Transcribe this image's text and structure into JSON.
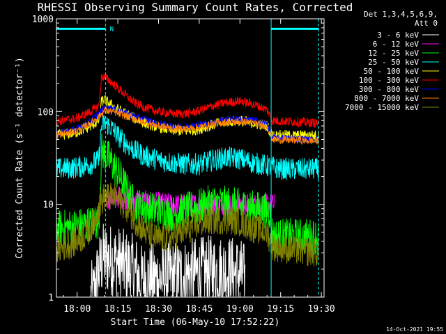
{
  "chart_data": {
    "type": "line",
    "title": "RHESSI Observing Summary Count Rates, Corrected",
    "xlabel": "Start Time (06-May-10 17:52:22)",
    "ylabel": "Corrected Count Rate (s⁻¹ detector⁻¹)",
    "yscale": "log",
    "ylim": [
      1,
      1000
    ],
    "xlim": [
      "17:52:22",
      "19:31:00"
    ],
    "x_ticks": [
      "18:00",
      "18:15",
      "18:30",
      "18:45",
      "19:00",
      "19:15",
      "19:30"
    ],
    "y_ticks": [
      "1",
      "10",
      "100",
      "1000"
    ],
    "legend_header": [
      "Det 1,3,4,5,6,9,",
      "Att 0"
    ],
    "legend_position": "right",
    "footer_stamp": "14-Oct-2021 19:55",
    "flag_label": "N",
    "flags": [
      {
        "name": "night",
        "start": "17:52:22",
        "end": "18:10:30",
        "level": 780
      },
      {
        "name": "night",
        "start": "19:11:30",
        "end": "19:29:00",
        "level": 780
      }
    ],
    "vertical_lines": [
      {
        "t": "17:52:22",
        "style": "solid"
      },
      {
        "t": "18:10:30",
        "style": "dashed"
      },
      {
        "t": "19:11:30",
        "style": "solid"
      },
      {
        "t": "19:29:00",
        "style": "dashed"
      }
    ],
    "series": [
      {
        "name": "3 - 6 keV",
        "color": "#ffffff",
        "noise": 0.4,
        "x": [
          "18:05",
          "18:06",
          "18:07",
          "18:08",
          "18:09",
          "18:10",
          "18:11",
          "18:13",
          "18:15",
          "18:17",
          "18:20",
          "18:22",
          "18:23",
          "18:45",
          "18:50",
          "18:55",
          "19:00",
          "19:02"
        ],
        "y": [
          1.0,
          1.0,
          1.5,
          1.9,
          2.4,
          2.7,
          2.6,
          2.5,
          2.4,
          2.2,
          2.0,
          1.8,
          1.5,
          1.8,
          1.9,
          1.9,
          1.8,
          1.5
        ]
      },
      {
        "name": "6 - 12 keV",
        "color": "#ff00ff",
        "noise": 0.12,
        "x": [
          "18:11",
          "18:13",
          "18:15",
          "18:18",
          "18:22",
          "18:27",
          "18:35",
          "18:45",
          "18:55",
          "19:05",
          "19:13"
        ],
        "y": [
          11,
          12,
          12,
          11.5,
          11,
          10.5,
          10,
          10,
          10,
          10,
          10
        ]
      },
      {
        "name": "12 - 25 keV",
        "color": "#00ff00",
        "noise": 0.2,
        "x": [
          "17:52:22",
          "18:00",
          "18:05",
          "18:08",
          "18:09",
          "18:10",
          "18:12",
          "18:15",
          "18:18",
          "18:21",
          "18:25",
          "18:30",
          "18:35",
          "18:40",
          "18:45",
          "18:50",
          "18:55",
          "19:00",
          "19:05",
          "19:11",
          "19:12",
          "19:20",
          "19:29"
        ],
        "y": [
          5.5,
          5.8,
          6.2,
          6.5,
          38,
          35,
          30,
          22,
          15,
          10,
          9,
          8.5,
          8.0,
          8.5,
          9.5,
          10.5,
          10,
          9.5,
          9,
          8.5,
          4.5,
          4.5,
          4.5
        ]
      },
      {
        "name": "25 - 50 keV",
        "color": "#00ffff",
        "noise": 0.12,
        "x": [
          "17:52:22",
          "18:00",
          "18:05",
          "18:08",
          "18:09",
          "18:10",
          "18:12",
          "18:15",
          "18:18",
          "18:21",
          "18:25",
          "18:30",
          "18:35",
          "18:40",
          "18:45",
          "18:50",
          "18:55",
          "19:00",
          "19:05",
          "19:10",
          "19:15",
          "19:29"
        ],
        "y": [
          24,
          25,
          27,
          30,
          70,
          75,
          70,
          55,
          45,
          38,
          33,
          30,
          28,
          27,
          27,
          30,
          32,
          31,
          28,
          26,
          24,
          24
        ]
      },
      {
        "name": "50 - 100 keV",
        "color": "#ffff00",
        "noise": 0.06,
        "x": [
          "17:52:22",
          "18:00",
          "18:05",
          "18:08",
          "18:09",
          "18:10",
          "18:12",
          "18:15",
          "18:18",
          "18:21",
          "18:25",
          "18:30",
          "18:35",
          "18:40",
          "18:45",
          "18:50",
          "18:55",
          "19:00",
          "19:05",
          "19:10",
          "19:12",
          "19:29"
        ],
        "y": [
          55,
          60,
          70,
          80,
          130,
          135,
          120,
          105,
          95,
          85,
          75,
          68,
          63,
          62,
          65,
          72,
          78,
          80,
          75,
          70,
          55,
          55
        ]
      },
      {
        "name": "100 - 300 keV",
        "color": "#ff0000",
        "noise": 0.05,
        "x": [
          "17:52:22",
          "18:00",
          "18:05",
          "18:08",
          "18:09",
          "18:10",
          "18:12",
          "18:15",
          "18:18",
          "18:21",
          "18:25",
          "18:30",
          "18:35",
          "18:40",
          "18:45",
          "18:50",
          "18:55",
          "19:00",
          "19:05",
          "19:10",
          "19:12",
          "19:29"
        ],
        "y": [
          78,
          85,
          100,
          115,
          240,
          235,
          215,
          180,
          150,
          125,
          110,
          100,
          95,
          95,
          102,
          115,
          125,
          130,
          120,
          105,
          80,
          75
        ]
      },
      {
        "name": "300 - 800 keV",
        "color": "#0000ff",
        "noise": 0.04,
        "x": [
          "17:52:22",
          "18:00",
          "18:05",
          "18:08",
          "18:10",
          "18:13",
          "18:16",
          "18:20",
          "18:25",
          "18:30",
          "18:35",
          "18:40",
          "18:45",
          "18:50",
          "18:55",
          "19:00",
          "19:05",
          "19:10",
          "19:12",
          "19:29"
        ],
        "y": [
          58,
          65,
          80,
          95,
          110,
          108,
          100,
          92,
          82,
          74,
          70,
          69,
          72,
          77,
          82,
          83,
          80,
          75,
          52,
          50
        ]
      },
      {
        "name": "800 - 7000 keV",
        "color": "#ff8000",
        "noise": 0.04,
        "x": [
          "17:52:22",
          "18:00",
          "18:05",
          "18:08",
          "18:10",
          "18:13",
          "18:16",
          "18:20",
          "18:25",
          "18:30",
          "18:35",
          "18:40",
          "18:45",
          "18:50",
          "18:55",
          "19:00",
          "19:05",
          "19:10",
          "19:12",
          "19:29"
        ],
        "y": [
          55,
          62,
          75,
          88,
          102,
          100,
          93,
          86,
          77,
          70,
          66,
          65,
          68,
          73,
          77,
          78,
          75,
          70,
          50,
          48
        ]
      },
      {
        "name": "7000 - 15000 keV",
        "color": "#808000",
        "noise": 0.16,
        "x": [
          "17:52:22",
          "18:00",
          "18:04",
          "18:06",
          "18:08",
          "18:10",
          "18:12",
          "18:15",
          "18:18",
          "18:21",
          "18:25",
          "18:30",
          "18:35",
          "18:40",
          "18:45",
          "18:50",
          "18:55",
          "19:00",
          "19:05",
          "19:10",
          "19:12",
          "19:20",
          "19:29"
        ],
        "y": [
          3.2,
          4.0,
          5.0,
          6.5,
          9.5,
          12,
          12,
          11.5,
          9.5,
          7,
          5,
          4.2,
          4.5,
          5.2,
          6.2,
          6.8,
          6.8,
          6.5,
          5.5,
          5.0,
          3.5,
          3.2,
          3.0
        ]
      }
    ]
  }
}
